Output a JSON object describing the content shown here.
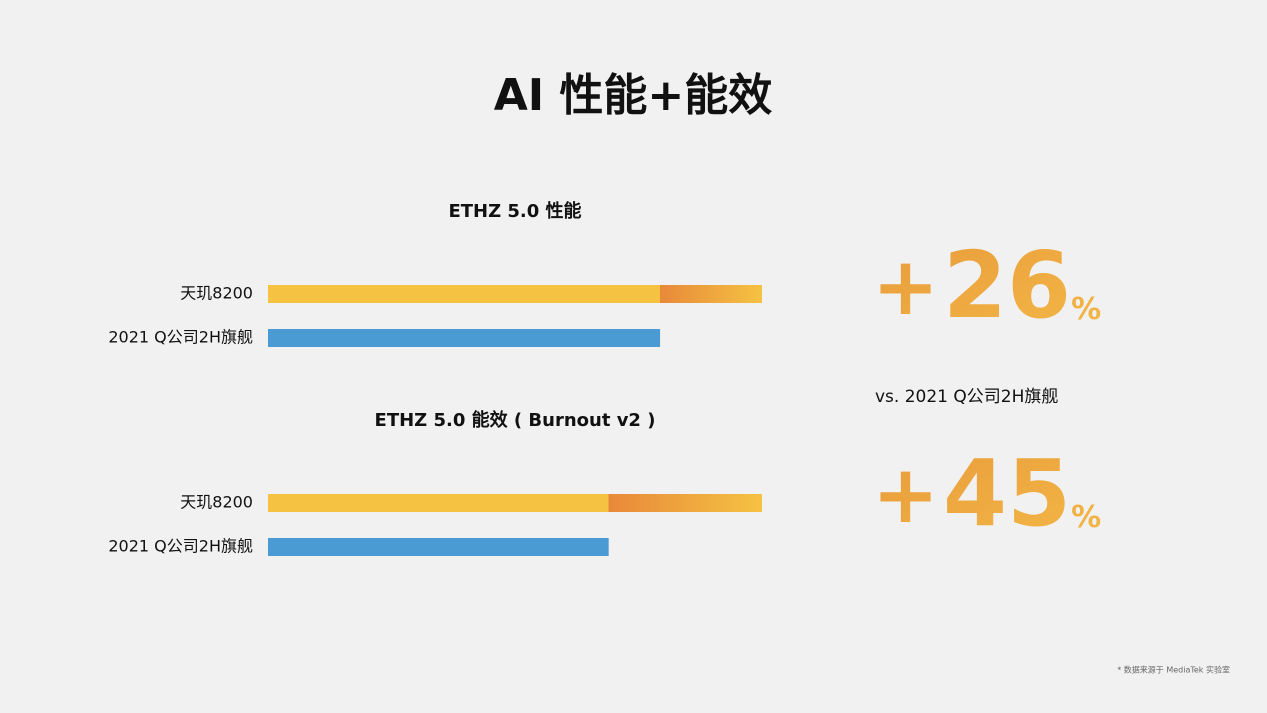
{
  "title": "AI 性能+能效",
  "comparison_note": "vs. 2021 Q公司2H旗舰",
  "footnote": "* 数据来源于 MediaTek 实验室",
  "chart_data": [
    {
      "type": "bar",
      "orientation": "horizontal",
      "title": "ETHZ 5.0 性能",
      "categories": [
        "天玑8200",
        "2021 Q公司2H旗舰"
      ],
      "values": [
        126,
        100
      ],
      "colors": [
        "#f5c242",
        "#4a9bd4"
      ],
      "highlight_color": "#e8893a",
      "xlim": [
        0,
        126
      ],
      "callout": {
        "prefix": "+",
        "value": 26,
        "unit": "%"
      }
    },
    {
      "type": "bar",
      "orientation": "horizontal",
      "title": "ETHZ 5.0 能效 ( Burnout v2 )",
      "categories": [
        "天玑8200",
        "2021 Q公司2H旗舰"
      ],
      "values": [
        145,
        100
      ],
      "colors": [
        "#f5c242",
        "#4a9bd4"
      ],
      "highlight_color": "#e8893a",
      "xlim": [
        0,
        145
      ],
      "callout": {
        "prefix": "+",
        "value": 45,
        "unit": "%"
      }
    }
  ]
}
